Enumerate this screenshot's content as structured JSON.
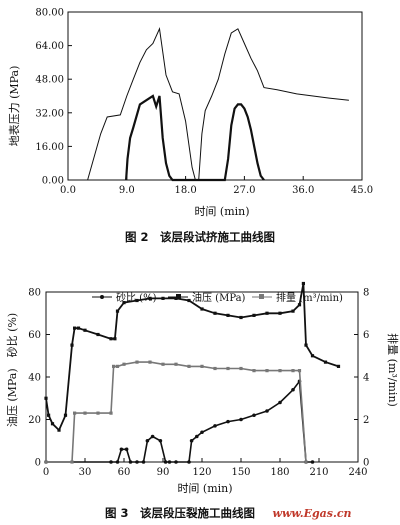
{
  "chart_data": [
    {
      "type": "line",
      "caption": "图 2　该层段试挤施工曲线图",
      "xlabel": "时间 (min)",
      "ylabel": "地表压力 (MPa)",
      "xlim": [
        0,
        45
      ],
      "ylim": [
        0,
        80
      ],
      "x_ticks": [
        "0.0",
        "9.0",
        "18.0",
        "27.0",
        "36.0",
        "45.0"
      ],
      "y_ticks": [
        "0.00",
        "16.00",
        "32.00",
        "48.00",
        "64.00",
        "80.00"
      ],
      "series": [
        {
          "values_desc": "surface pressure",
          "x": [
            0,
            3,
            5,
            6,
            8,
            9,
            10,
            11,
            12,
            13,
            14,
            15,
            16,
            17,
            18,
            19,
            19.5,
            20,
            20.5,
            21,
            22,
            23,
            24,
            25,
            26,
            27,
            28,
            29,
            30,
            32,
            35,
            40,
            43
          ],
          "y": [
            0,
            0,
            22,
            30,
            31,
            40,
            48,
            56,
            62,
            65,
            72,
            50,
            42,
            41,
            28,
            6,
            0,
            0,
            22,
            33,
            40,
            48,
            60,
            70,
            72,
            65,
            58,
            52,
            44,
            43,
            41,
            39,
            38
          ]
        },
        {
          "values_desc": "proppant/rate steps",
          "x": [
            8.9,
            9.1,
            9.5,
            10,
            11,
            12,
            13,
            13.5,
            14,
            14.5,
            15,
            15.5,
            16,
            24,
            24.5,
            25,
            25.5,
            26,
            26.5,
            27,
            27.5,
            28,
            28.5,
            29,
            29.5,
            30
          ],
          "y": [
            0,
            10,
            20,
            25,
            36,
            38,
            40,
            35,
            40,
            20,
            8,
            2,
            0,
            0,
            10,
            26,
            34,
            36,
            36,
            34,
            30,
            24,
            16,
            8,
            2,
            0
          ]
        }
      ]
    },
    {
      "type": "line",
      "caption": "图 3　该层段压裂施工曲线图",
      "xlabel": "时间 (min)",
      "ylabel_left": "油压 (MPa)　砂比 (%)",
      "ylabel_right": "排量 (m³/min)",
      "xlim": [
        0,
        240
      ],
      "ylim": [
        0,
        80
      ],
      "y2lim": [
        0,
        8
      ],
      "x_ticks": [
        "0",
        "30",
        "60",
        "90",
        "120",
        "150",
        "180",
        "210",
        "240"
      ],
      "y_ticks": [
        "0",
        "20",
        "40",
        "60",
        "80"
      ],
      "y2_ticks": [
        "0",
        "2",
        "4",
        "6",
        "8"
      ],
      "legend": [
        "砂比 (%)",
        "油压 (MPa)",
        "排量 (m³/min)"
      ],
      "series": [
        {
          "name": "砂比 (%)",
          "x": [
            0,
            50,
            55,
            58,
            62,
            65,
            70,
            75,
            78,
            82,
            88,
            92,
            95,
            100,
            110,
            112,
            116,
            120,
            130,
            140,
            150,
            160,
            170,
            180,
            190,
            195,
            200,
            205
          ],
          "y": [
            0,
            0,
            0,
            6,
            6,
            0,
            0,
            0,
            10,
            12,
            10,
            0,
            0,
            0,
            0,
            10,
            12,
            14,
            17,
            19,
            20,
            22,
            24,
            28,
            34,
            38,
            0,
            0
          ]
        },
        {
          "name": "油压 (MPa)",
          "x": [
            0,
            2,
            5,
            10,
            15,
            20,
            22,
            25,
            30,
            40,
            50,
            53,
            55,
            60,
            70,
            80,
            90,
            100,
            110,
            120,
            130,
            140,
            150,
            160,
            170,
            180,
            190,
            195,
            198,
            200,
            205,
            215,
            225
          ],
          "y": [
            30,
            22,
            18,
            15,
            22,
            55,
            63,
            63,
            62,
            60,
            58,
            58,
            71,
            75,
            76,
            77,
            77,
            77,
            76,
            72,
            70,
            69,
            68,
            69,
            70,
            70,
            71,
            74,
            84,
            55,
            50,
            47,
            45
          ]
        },
        {
          "name": "排量 (m³/min)",
          "x": [
            0,
            20,
            22,
            30,
            40,
            50,
            52,
            55,
            60,
            70,
            80,
            90,
            100,
            110,
            120,
            130,
            140,
            150,
            160,
            170,
            180,
            190,
            195,
            200
          ],
          "y": [
            0,
            0,
            2.3,
            2.3,
            2.3,
            2.3,
            4.5,
            4.5,
            4.6,
            4.7,
            4.7,
            4.6,
            4.6,
            4.5,
            4.5,
            4.4,
            4.4,
            4.4,
            4.3,
            4.3,
            4.3,
            4.3,
            4.3,
            0
          ]
        }
      ]
    }
  ],
  "watermark": "www.Egas.cn"
}
